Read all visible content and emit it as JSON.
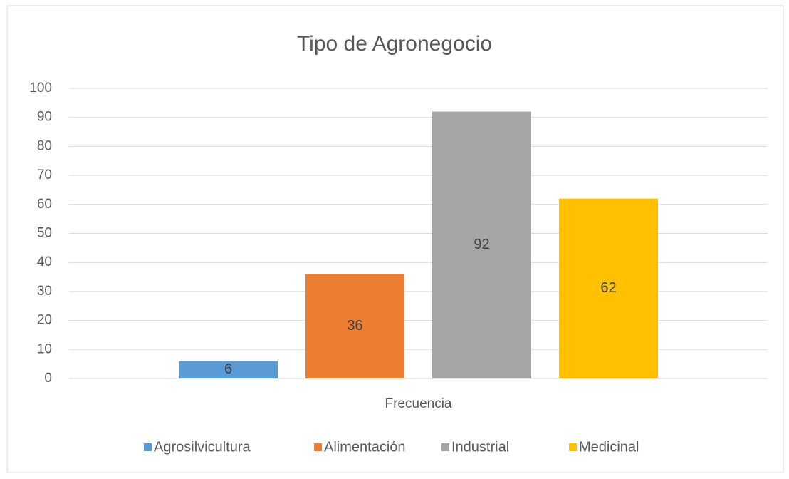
{
  "chart_data": {
    "type": "bar",
    "title": "Tipo de Agronegocio",
    "categories": [
      "Frecuencia"
    ],
    "series": [
      {
        "name": "Agrosilvicultura",
        "color": "#5b9bd5",
        "values": [
          6
        ]
      },
      {
        "name": "Alimentación",
        "color": "#ed7d31",
        "values": [
          36
        ]
      },
      {
        "name": "Industrial",
        "color": "#a5a5a5",
        "values": [
          92
        ]
      },
      {
        "name": "Medicinal",
        "color": "#ffc000",
        "values": [
          62
        ]
      }
    ],
    "ylim": [
      0,
      100
    ],
    "yticks": [
      0,
      10,
      20,
      30,
      40,
      50,
      60,
      70,
      80,
      90,
      100
    ],
    "grid": true,
    "legend": "bottom",
    "data_labels": true
  }
}
